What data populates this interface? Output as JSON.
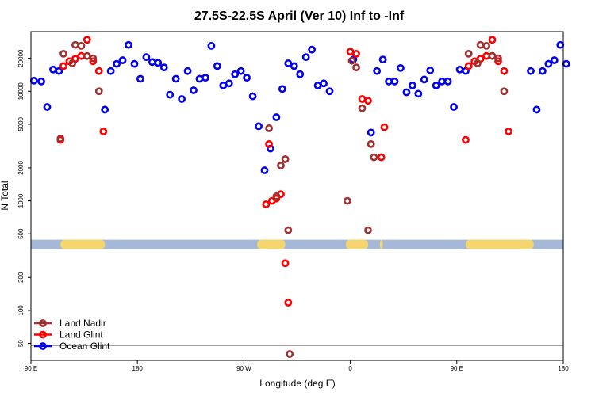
{
  "chart_data": {
    "type": "scatter",
    "title": "27.5S-22.5S April (Ver 10)   Inf to -Inf",
    "xlabel": "Longitude (deg E)",
    "ylabel": "N Total",
    "y_scale": "log",
    "xlim": [
      90,
      450
    ],
    "ylim": [
      35,
      35000
    ],
    "x_ticks": [
      {
        "value": 90,
        "label": "90 E"
      },
      {
        "value": 162,
        "label": "180"
      },
      {
        "value": 234,
        "label": "90 W"
      },
      {
        "value": 306,
        "label": "0"
      },
      {
        "value": 378,
        "label": "90 E"
      },
      {
        "value": 450,
        "label": "180"
      }
    ],
    "y_ticks": [
      {
        "value": 50,
        "label": "50"
      },
      {
        "value": 100,
        "label": "100"
      },
      {
        "value": 200,
        "label": "200"
      },
      {
        "value": 500,
        "label": "500"
      },
      {
        "value": 1000,
        "label": "1000"
      },
      {
        "value": 2000,
        "label": "2000"
      },
      {
        "value": 5000,
        "label": "5000"
      },
      {
        "value": 10000,
        "label": "10000"
      },
      {
        "value": 20000,
        "label": "20000"
      }
    ],
    "reference_line": 48,
    "land_band": {
      "y_value": 400,
      "ocean_color": "#a5b8d8",
      "land_color": "#f5d56e",
      "land_segments": [
        [
          110,
          140
        ],
        [
          243,
          262
        ],
        [
          303,
          318
        ],
        [
          326,
          328
        ],
        [
          384,
          430
        ]
      ]
    },
    "legend": {
      "position": "bottom-left",
      "entries": [
        {
          "name": "Land Nadir",
          "color": "#a03030"
        },
        {
          "name": "Land Glint",
          "color": "#ff0000"
        },
        {
          "name": "Ocean Glint",
          "color": "#0000ee"
        }
      ]
    },
    "series": [
      {
        "name": "Ocean Glint",
        "color": "#0000ee",
        "points": [
          [
            92,
            12500
          ],
          [
            97,
            12300
          ],
          [
            101,
            7200
          ],
          [
            105,
            15800
          ],
          [
            109,
            15300
          ],
          [
            140,
            6800
          ],
          [
            144,
            15300
          ],
          [
            148,
            17800
          ],
          [
            152,
            19200
          ],
          [
            156,
            26500
          ],
          [
            160,
            17800
          ],
          [
            164,
            13000
          ],
          [
            168,
            20500
          ],
          [
            172,
            18500
          ],
          [
            176,
            18200
          ],
          [
            180,
            16500
          ],
          [
            184,
            9300
          ],
          [
            188,
            13000
          ],
          [
            192,
            8500
          ],
          [
            196,
            15300
          ],
          [
            200,
            10200
          ],
          [
            204,
            13000
          ],
          [
            208,
            13300
          ],
          [
            212,
            26000
          ],
          [
            216,
            17000
          ],
          [
            220,
            11300
          ],
          [
            224,
            11800
          ],
          [
            228,
            14300
          ],
          [
            232,
            15300
          ],
          [
            236,
            13300
          ],
          [
            240,
            9000
          ],
          [
            244,
            4800
          ],
          [
            248,
            1900
          ],
          [
            252,
            3000
          ],
          [
            256,
            5800
          ],
          [
            260,
            10500
          ],
          [
            264,
            18000
          ],
          [
            268,
            17000
          ],
          [
            272,
            14300
          ],
          [
            276,
            20500
          ],
          [
            280,
            24000
          ],
          [
            284,
            11300
          ],
          [
            288,
            11800
          ],
          [
            292,
            10000
          ],
          [
            308,
            19500
          ],
          [
            320,
            4200
          ],
          [
            324,
            15300
          ],
          [
            328,
            19500
          ],
          [
            332,
            12300
          ],
          [
            336,
            12300
          ],
          [
            340,
            16300
          ],
          [
            344,
            9800
          ],
          [
            348,
            11300
          ],
          [
            352,
            9500
          ],
          [
            356,
            12800
          ],
          [
            360,
            15500
          ],
          [
            364,
            11300
          ],
          [
            368,
            12300
          ],
          [
            372,
            12300
          ],
          [
            376,
            7200
          ],
          [
            380,
            15800
          ],
          [
            384,
            15300
          ],
          [
            428,
            15300
          ],
          [
            432,
            6800
          ],
          [
            436,
            15300
          ],
          [
            440,
            17800
          ],
          [
            444,
            19200
          ],
          [
            448,
            26500
          ],
          [
            452,
            17800
          ]
        ]
      },
      {
        "name": "Land Glint",
        "color": "#ff0000",
        "points": [
          [
            110,
            3600
          ],
          [
            112,
            17000
          ],
          [
            116,
            18800
          ],
          [
            120,
            19800
          ],
          [
            124,
            21000
          ],
          [
            128,
            29500
          ],
          [
            132,
            18800
          ],
          [
            136,
            15300
          ],
          [
            139,
            4300
          ],
          [
            249,
            930
          ],
          [
            251,
            3300
          ],
          [
            253,
            1000
          ],
          [
            256,
            1050
          ],
          [
            259,
            1150
          ],
          [
            262,
            270
          ],
          [
            264,
            118
          ],
          [
            306,
            23000
          ],
          [
            310,
            22000
          ],
          [
            314,
            8500
          ],
          [
            318,
            8200
          ],
          [
            327,
            2500
          ],
          [
            329,
            4700
          ],
          [
            384,
            3600
          ],
          [
            386,
            17000
          ],
          [
            390,
            18800
          ],
          [
            394,
            19800
          ],
          [
            398,
            21000
          ],
          [
            402,
            29500
          ],
          [
            406,
            18800
          ],
          [
            410,
            15300
          ],
          [
            413,
            4300
          ]
        ]
      },
      {
        "name": "Land Nadir",
        "color": "#a03030",
        "points": [
          [
            110,
            3700
          ],
          [
            112,
            22000
          ],
          [
            118,
            18000
          ],
          [
            120,
            26500
          ],
          [
            124,
            26000
          ],
          [
            128,
            21000
          ],
          [
            132,
            20000
          ],
          [
            136,
            10000
          ],
          [
            251,
            4600
          ],
          [
            256,
            1100
          ],
          [
            259,
            2100
          ],
          [
            262,
            2400
          ],
          [
            264,
            540
          ],
          [
            265,
            40
          ],
          [
            304,
            1000
          ],
          [
            307,
            19000
          ],
          [
            310,
            16500
          ],
          [
            314,
            7000
          ],
          [
            318,
            540
          ],
          [
            320,
            3300
          ],
          [
            322,
            2500
          ],
          [
            386,
            22000
          ],
          [
            392,
            18000
          ],
          [
            394,
            26500
          ],
          [
            398,
            26000
          ],
          [
            402,
            21000
          ],
          [
            406,
            20000
          ],
          [
            410,
            10000
          ]
        ]
      }
    ]
  }
}
